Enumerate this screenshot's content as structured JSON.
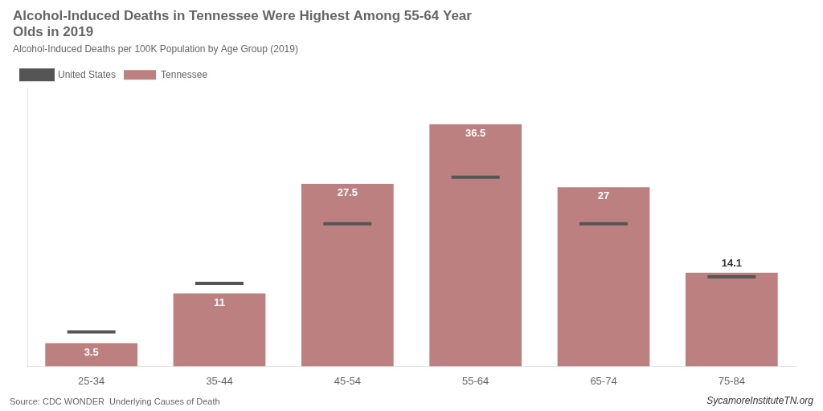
{
  "chart_data": {
    "type": "bar",
    "title": "Alcohol-Induced Deaths in Tennessee Were Highest Among 55-64 Year\nOlds in 2019",
    "subtitle": "Alcohol-Induced Deaths per 100K Population by Age Group (2019)",
    "categories": [
      "25-34",
      "35-44",
      "45-54",
      "55-64",
      "65-74",
      "75-84"
    ],
    "series": [
      {
        "name": "Tennessee",
        "type": "bar",
        "color": "#bc8080",
        "data_labels": true,
        "values": [
          3.5,
          11,
          27.5,
          36.5,
          27,
          14.1
        ]
      },
      {
        "name": "United States",
        "type": "scatter",
        "marker": "line",
        "color": "#555555",
        "values": [
          5.2,
          12.5,
          21.5,
          28.5,
          21.5,
          13.5
        ]
      }
    ],
    "ylim": [
      0,
      42
    ],
    "tick_labels": "x",
    "grid": false,
    "legend": "upper left",
    "annotations": [
      "Source: CDC WONDER  Underlying Causes of Death",
      "SycamoreInstituteTN.org"
    ]
  }
}
